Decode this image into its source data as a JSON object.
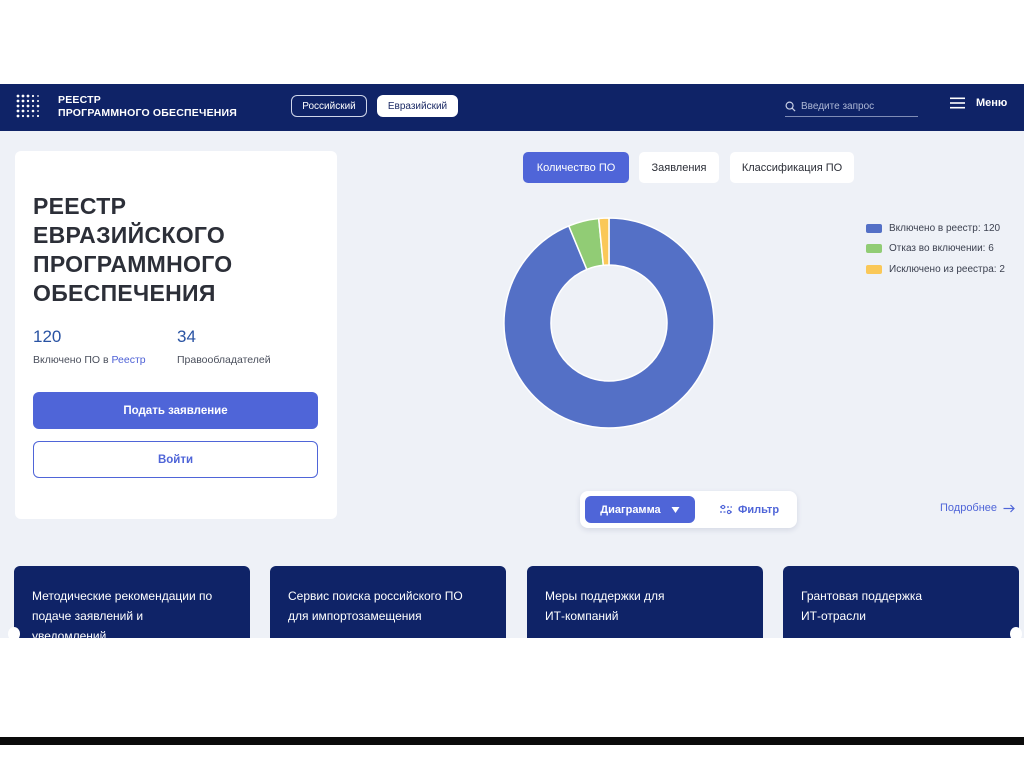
{
  "header": {
    "logo_line1": "РЕЕСТР",
    "logo_line2": "ПРОГРАММНОГО ОБЕСПЕЧЕНИЯ",
    "registry_tabs": [
      "Российский",
      "Евразийский"
    ],
    "search_placeholder": "Введите запрос",
    "menu_label": "Меню"
  },
  "card": {
    "title_lines": [
      "РЕЕСТР",
      "ЕВРАЗИЙСКОГО",
      "ПРОГРАММНОГО",
      "ОБЕСПЕЧЕНИЯ"
    ],
    "stat1_value": "120",
    "stat1_label": "Включено ПО в ",
    "stat1_link": "Реестр",
    "stat2_value": "34",
    "stat2_label": "Правообладателей",
    "apply_button": "Подать заявление",
    "login_button": "Войти"
  },
  "chart_tabs": [
    "Количество ПО",
    "Заявления",
    "Классификация ПО"
  ],
  "chart_data": {
    "type": "pie",
    "categories": [
      "Включено в реестр",
      "Отказ во включении",
      "Исключено из реестра"
    ],
    "values": [
      120,
      6,
      2
    ],
    "legend_labels": [
      "Включено в реестр: 120",
      "Отказ во включении: 6",
      "Исключено из реестра: 2"
    ],
    "colors": [
      "#5470c6",
      "#91cc75",
      "#fac858"
    ],
    "legend_position": "right"
  },
  "controls": {
    "diagram_label": "Диаграмма",
    "filter_label": "Фильтр",
    "more_link": "Подробнее"
  },
  "info_cards": [
    {
      "lines": [
        "Методические рекомендации по",
        "подаче заявлений и",
        "уведомлений"
      ]
    },
    {
      "lines": [
        "Сервис поиска российского ПО",
        "для импортозамещения"
      ]
    },
    {
      "lines": [
        "Меры поддержки для",
        "ИТ-компаний"
      ]
    },
    {
      "lines": [
        "Грантовая поддержка",
        "ИТ-отрасли"
      ]
    }
  ],
  "colors": {
    "header_bg": "#0f2367",
    "accent": "#4f65d8",
    "page_bg": "#eef1f7"
  }
}
